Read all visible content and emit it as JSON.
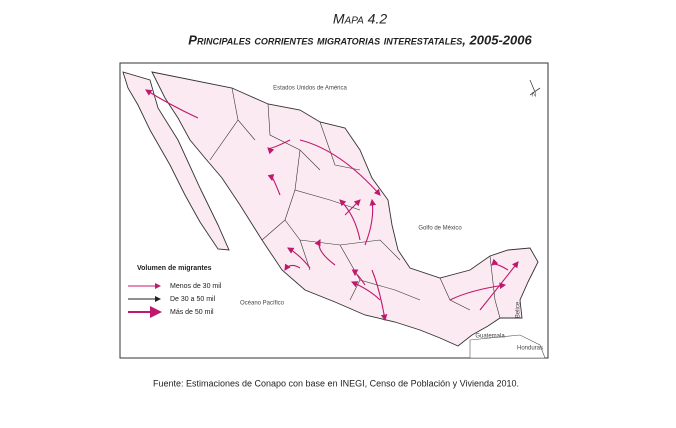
{
  "header": {
    "title": "Mapa 4.2",
    "subtitle": "Principales corrientes migratorias interestatales, 2005-2006"
  },
  "map": {
    "labels": {
      "usa": "Estados Unidos de América",
      "gulf": "Golfo de México",
      "pacific": "Océano Pacífico",
      "guatemala": "Guatemala",
      "honduras": "Honduras",
      "belize": "Belice",
      "north": "N"
    }
  },
  "legend": {
    "title": "Volumen de migrantes",
    "items": [
      "Menos de 30 mil",
      "De 30 a 50 mil",
      "Más de 50 mil"
    ]
  },
  "source": "Fuente: Estimaciones de Conapo con base en INEGI, Censo de Población y Vivienda 2010."
}
